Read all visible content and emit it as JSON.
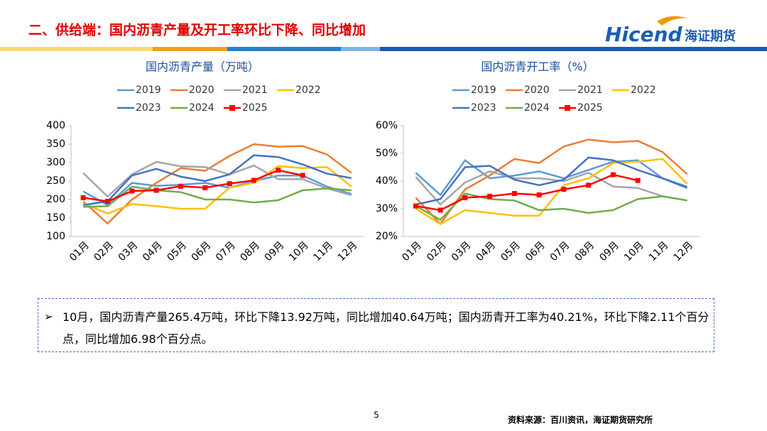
{
  "header": {
    "title": "二、供给端：国内沥青产量及开工率环比下降、同比增加",
    "logo": "Hicend",
    "logo_cn": "海证期货"
  },
  "chart_data": [
    {
      "type": "line",
      "title": "国内沥青产量（万吨）",
      "categories": [
        "01月",
        "02月",
        "03月",
        "04月",
        "05月",
        "06月",
        "07月",
        "08月",
        "09月",
        "10月",
        "11月",
        "12月"
      ],
      "ylim": [
        100,
        400
      ],
      "yticks": [
        100,
        150,
        200,
        250,
        300,
        350,
        400
      ],
      "series": [
        {
          "name": "2019",
          "color": "#5b9bd5",
          "values": [
            222,
            185,
            245,
            237,
            240,
            245,
            232,
            250,
            265,
            265,
            235,
            215
          ]
        },
        {
          "name": "2020",
          "color": "#ed7d31",
          "values": [
            195,
            135,
            200,
            245,
            285,
            278,
            318,
            350,
            343,
            345,
            322,
            272
          ]
        },
        {
          "name": "2021",
          "color": "#a5a5a5",
          "values": [
            272,
            208,
            268,
            302,
            290,
            288,
            268,
            292,
            255,
            255,
            230,
            212
          ]
        },
        {
          "name": "2022",
          "color": "#ffc000",
          "values": [
            190,
            162,
            188,
            182,
            175,
            175,
            232,
            245,
            290,
            285,
            288,
            235
          ]
        },
        {
          "name": "2023",
          "color": "#4472c4",
          "values": [
            185,
            195,
            265,
            283,
            262,
            250,
            268,
            320,
            315,
            295,
            270,
            258
          ]
        },
        {
          "name": "2024",
          "color": "#70ad47",
          "values": [
            180,
            182,
            235,
            225,
            220,
            200,
            200,
            192,
            198,
            225,
            230,
            225
          ]
        },
        {
          "name": "2025",
          "color": "#ff0000",
          "marker": "square",
          "values": [
            205,
            195,
            223,
            225,
            236,
            232,
            243,
            252,
            279.3,
            265.4,
            null,
            null
          ]
        }
      ]
    },
    {
      "type": "line",
      "title": "国内沥青开工率（%）",
      "categories": [
        "01月",
        "02月",
        "03月",
        "04月",
        "05月",
        "06月",
        "07月",
        "08月",
        "09月",
        "10月",
        "11月",
        "12月"
      ],
      "ylim": [
        20,
        60
      ],
      "yticks": [
        {
          "value": 20,
          "label": "20%"
        },
        {
          "value": 30,
          "label": "30%"
        },
        {
          "value": 40,
          "label": "40%"
        },
        {
          "value": 50,
          "label": "50%"
        },
        {
          "value": 60,
          "label": "60%"
        }
      ],
      "series": [
        {
          "name": "2019",
          "color": "#5b9bd5",
          "values": [
            43,
            35,
            47.5,
            41,
            42,
            43.5,
            41,
            44,
            47,
            47.5,
            41,
            38
          ]
        },
        {
          "name": "2020",
          "color": "#ed7d31",
          "values": [
            34,
            24.5,
            37,
            42,
            48,
            46.5,
            52.5,
            55,
            54,
            54.5,
            50.5,
            42.5
          ]
        },
        {
          "name": "2021",
          "color": "#a5a5a5",
          "values": [
            41.5,
            31.5,
            39.5,
            43.5,
            41,
            41,
            40,
            43,
            38,
            37.5,
            34.5,
            33
          ]
        },
        {
          "name": "2022",
          "color": "#ffc000",
          "values": [
            30,
            24.5,
            29.5,
            28.5,
            27.5,
            27.5,
            38.5,
            41,
            46.5,
            47,
            48,
            39
          ]
        },
        {
          "name": "2023",
          "color": "#4472c4",
          "values": [
            31.5,
            33.5,
            45,
            45.5,
            40.5,
            38.5,
            40.5,
            48.5,
            47.5,
            44,
            41,
            37.5
          ]
        },
        {
          "name": "2024",
          "color": "#70ad47",
          "values": [
            31,
            26,
            35.5,
            33.5,
            33,
            29.5,
            30,
            28.5,
            29.5,
            33.5,
            34.5,
            33
          ]
        },
        {
          "name": "2025",
          "color": "#ff0000",
          "marker": "square",
          "values": [
            31,
            29.5,
            34,
            34.5,
            35.5,
            35,
            37,
            38.5,
            42.3,
            40.21,
            null,
            null
          ]
        }
      ]
    }
  ],
  "summary": "10月，国内沥青产量265.4万吨，环比下降13.92万吨，同比增加40.64万吨；国内沥青开工率为40.21%，环比下降2.11个百分点，同比增加6.98个百分点。",
  "page_number": "5",
  "source": "资料来源：百川资讯，海证期货研究所"
}
